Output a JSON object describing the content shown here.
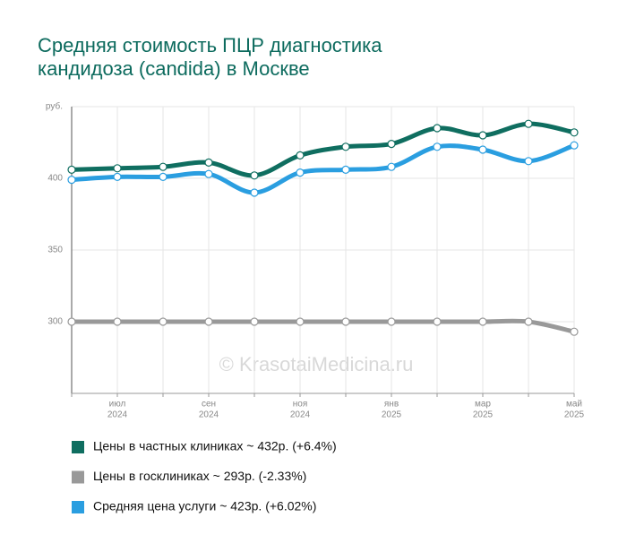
{
  "chart_data": {
    "type": "line",
    "title": [
      "Средняя стоимость ПЦР диагностика",
      "кандидоза (candida) в Москве"
    ],
    "watermark": "© KrasotaiMedicina.ru",
    "categories": [
      null,
      {
        "month": "июл",
        "year": "2024"
      },
      null,
      {
        "month": "сен",
        "year": "2024"
      },
      null,
      {
        "month": "ноя",
        "year": "2024"
      },
      null,
      {
        "month": "янв",
        "year": "2025"
      },
      null,
      {
        "month": "мар",
        "year": "2025"
      },
      null,
      {
        "month": "май",
        "year": "2025"
      }
    ],
    "ylim": [
      250,
      450
    ],
    "yticks": [
      300,
      350,
      400,
      {
        "value": 450,
        "label": "руб."
      }
    ],
    "grid": true,
    "series": [
      {
        "name": "Цены в частных клиниках ~ 432р. (+6.4%)",
        "color": "#0f6e60",
        "values": [
          406,
          407,
          408,
          411,
          402,
          416,
          422,
          424,
          435,
          430,
          438,
          432
        ]
      },
      {
        "name": "Цены в госклиниках ~ 293р. (-2.33%)",
        "color": "#999999",
        "values": [
          300,
          300,
          300,
          300,
          300,
          300,
          300,
          300,
          300,
          300,
          300,
          293
        ]
      },
      {
        "name": "Средняя цена услуги ~ 423р. (+6.02%)",
        "color": "#2a9ee0",
        "values": [
          399,
          401,
          401,
          403,
          390,
          404,
          406,
          408,
          422,
          420,
          412,
          423
        ]
      }
    ]
  }
}
